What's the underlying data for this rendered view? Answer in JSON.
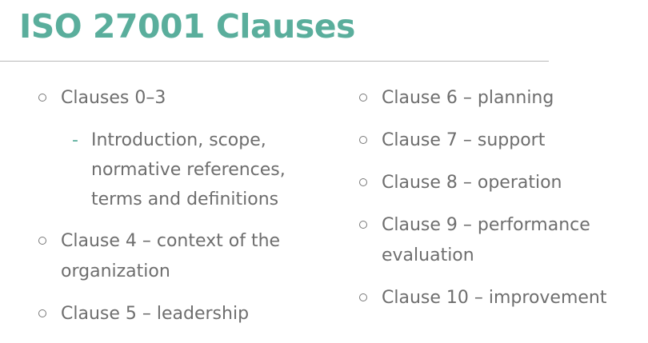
{
  "title": "ISO 27001 Clauses",
  "left_column": {
    "items": [
      {
        "label": "Clauses 0–3"
      },
      {
        "label": "Clause 4 – context of the organization"
      },
      {
        "label": "Clause 5 – leadership"
      }
    ],
    "sub_item": {
      "marker": "-",
      "label": "Introduction, scope, normative references, terms and definitions"
    }
  },
  "right_column": {
    "items": [
      {
        "label": "Clause 6 – planning"
      },
      {
        "label": "Clause 7 – support"
      },
      {
        "label": "Clause 8 – operation"
      },
      {
        "label": "Clause 9 – performance evaluation"
      },
      {
        "label": "Clause 10 – improvement"
      }
    ]
  },
  "colors": {
    "title": "#5aae9c",
    "text": "#6e6e6e",
    "rule": "#b9b9b9",
    "dash": "#5aae9c"
  },
  "icons": {
    "bullet": "hollow-circle-icon",
    "sub_bullet": "dash-icon"
  }
}
